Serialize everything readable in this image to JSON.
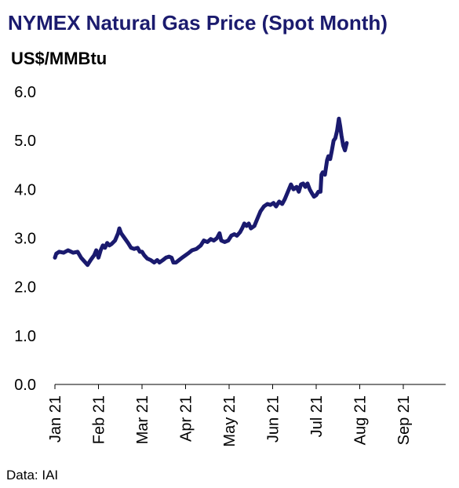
{
  "chart_data": {
    "type": "line",
    "title": "NYMEX Natural Gas Price (Spot Month)",
    "ylabel": "US$/MMBtu",
    "xlabel": "",
    "source": "Data: IAI",
    "ylim": [
      0,
      6
    ],
    "y_ticks": [
      "0.0",
      "1.0",
      "2.0",
      "3.0",
      "4.0",
      "5.0",
      "6.0"
    ],
    "x_ticks": [
      "Jan 21",
      "Feb 21",
      "Mar 21",
      "Apr 21",
      "May 21",
      "Jun 21",
      "Jul 21",
      "Aug 21",
      "Sep 21"
    ],
    "grid": false,
    "legend": "none",
    "line_color": "#1a1a6e",
    "series": [
      {
        "values": [
          [
            0,
            2.6
          ],
          [
            0.03,
            2.68
          ],
          [
            0.1,
            2.72
          ],
          [
            0.2,
            2.7
          ],
          [
            0.3,
            2.75
          ],
          [
            0.42,
            2.7
          ],
          [
            0.52,
            2.72
          ],
          [
            0.6,
            2.6
          ],
          [
            0.68,
            2.52
          ],
          [
            0.75,
            2.45
          ],
          [
            0.82,
            2.55
          ],
          [
            0.9,
            2.65
          ],
          [
            0.95,
            2.75
          ],
          [
            1.0,
            2.6
          ],
          [
            1.05,
            2.75
          ],
          [
            1.1,
            2.85
          ],
          [
            1.15,
            2.8
          ],
          [
            1.2,
            2.9
          ],
          [
            1.25,
            2.85
          ],
          [
            1.3,
            2.88
          ],
          [
            1.38,
            2.95
          ],
          [
            1.45,
            3.1
          ],
          [
            1.48,
            3.2
          ],
          [
            1.52,
            3.1
          ],
          [
            1.6,
            3.0
          ],
          [
            1.68,
            2.9
          ],
          [
            1.75,
            2.8
          ],
          [
            1.82,
            2.78
          ],
          [
            1.9,
            2.8
          ],
          [
            1.95,
            2.72
          ],
          [
            2.0,
            2.72
          ],
          [
            2.05,
            2.65
          ],
          [
            2.12,
            2.58
          ],
          [
            2.2,
            2.55
          ],
          [
            2.28,
            2.5
          ],
          [
            2.35,
            2.55
          ],
          [
            2.4,
            2.5
          ],
          [
            2.48,
            2.55
          ],
          [
            2.55,
            2.6
          ],
          [
            2.62,
            2.62
          ],
          [
            2.68,
            2.6
          ],
          [
            2.72,
            2.5
          ],
          [
            2.78,
            2.5
          ],
          [
            2.85,
            2.55
          ],
          [
            2.92,
            2.6
          ],
          [
            3.0,
            2.65
          ],
          [
            3.08,
            2.7
          ],
          [
            3.15,
            2.75
          ],
          [
            3.25,
            2.78
          ],
          [
            3.35,
            2.85
          ],
          [
            3.42,
            2.95
          ],
          [
            3.5,
            2.92
          ],
          [
            3.58,
            2.98
          ],
          [
            3.65,
            2.95
          ],
          [
            3.72,
            3.0
          ],
          [
            3.78,
            3.1
          ],
          [
            3.82,
            2.95
          ],
          [
            3.9,
            2.92
          ],
          [
            3.98,
            2.95
          ],
          [
            4.05,
            3.05
          ],
          [
            4.12,
            3.08
          ],
          [
            4.18,
            3.05
          ],
          [
            4.25,
            3.12
          ],
          [
            4.3,
            3.2
          ],
          [
            4.35,
            3.3
          ],
          [
            4.4,
            3.25
          ],
          [
            4.45,
            3.3
          ],
          [
            4.5,
            3.2
          ],
          [
            4.58,
            3.25
          ],
          [
            4.65,
            3.4
          ],
          [
            4.72,
            3.55
          ],
          [
            4.8,
            3.65
          ],
          [
            4.88,
            3.7
          ],
          [
            4.95,
            3.68
          ],
          [
            5.02,
            3.72
          ],
          [
            5.08,
            3.65
          ],
          [
            5.15,
            3.75
          ],
          [
            5.22,
            3.7
          ],
          [
            5.28,
            3.8
          ],
          [
            5.35,
            3.95
          ],
          [
            5.42,
            4.1
          ],
          [
            5.48,
            4.0
          ],
          [
            5.55,
            4.05
          ],
          [
            5.6,
            3.95
          ],
          [
            5.65,
            4.1
          ],
          [
            5.7,
            4.12
          ],
          [
            5.75,
            4.05
          ],
          [
            5.8,
            4.12
          ],
          [
            5.85,
            4.0
          ],
          [
            5.9,
            3.92
          ],
          [
            5.95,
            3.85
          ],
          [
            6.0,
            3.88
          ],
          [
            6.05,
            3.95
          ],
          [
            6.1,
            3.95
          ],
          [
            6.12,
            4.3
          ],
          [
            6.15,
            4.35
          ],
          [
            6.2,
            4.3
          ],
          [
            6.25,
            4.6
          ],
          [
            6.28,
            4.68
          ],
          [
            6.32,
            4.62
          ],
          [
            6.36,
            4.8
          ],
          [
            6.4,
            5.0
          ],
          [
            6.44,
            5.05
          ],
          [
            6.48,
            5.2
          ],
          [
            6.52,
            5.45
          ],
          [
            6.55,
            5.3
          ],
          [
            6.58,
            5.1
          ],
          [
            6.62,
            4.9
          ],
          [
            6.66,
            4.8
          ],
          [
            6.7,
            4.95
          ]
        ]
      }
    ]
  }
}
